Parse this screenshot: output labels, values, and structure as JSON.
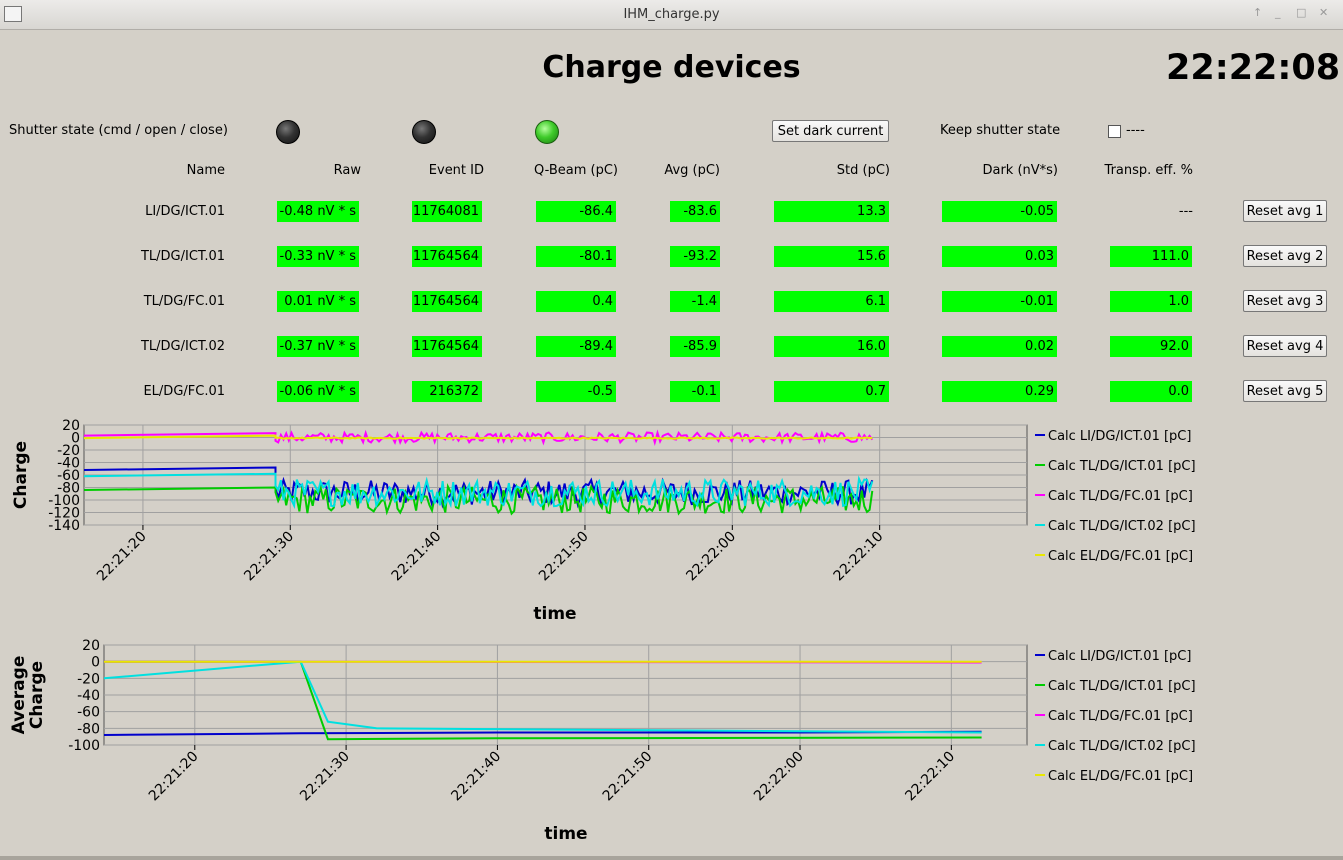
{
  "window": {
    "title": "IHM_charge.py"
  },
  "header": {
    "title": "Charge devices",
    "clock": "22:22:08"
  },
  "shutter": {
    "label": "Shutter state (cmd / open / close)",
    "leds": [
      "off",
      "off",
      "on"
    ]
  },
  "set_dark_label": "Set dark current",
  "keep_shutter": {
    "label": "Keep shutter state",
    "checkbox_text": "----"
  },
  "columns": [
    "Name",
    "Raw",
    "Event ID",
    "Q-Beam (pC)",
    "Avg (pC)",
    "Std (pC)",
    "Dark (nV*s)",
    "Transp. eff. %"
  ],
  "rows": [
    {
      "name": "LI/DG/ICT.01",
      "raw": "-0.48 nV * s",
      "event_id": "11764081",
      "qbeam": "-86.4",
      "avg": "-83.6",
      "std": "13.3",
      "dark": "-0.05",
      "transp": "---",
      "reset": "Reset avg 1"
    },
    {
      "name": "TL/DG/ICT.01",
      "raw": "-0.33 nV * s",
      "event_id": "11764564",
      "qbeam": "-80.1",
      "avg": "-93.2",
      "std": "15.6",
      "dark": "0.03",
      "transp": "111.0",
      "reset": "Reset avg 2"
    },
    {
      "name": "TL/DG/FC.01",
      "raw": "0.01 nV * s",
      "event_id": "11764564",
      "qbeam": "0.4",
      "avg": "-1.4",
      "std": "6.1",
      "dark": "-0.01",
      "transp": "1.0",
      "reset": "Reset avg 3"
    },
    {
      "name": "TL/DG/ICT.02",
      "raw": "-0.37 nV * s",
      "event_id": "11764564",
      "qbeam": "-89.4",
      "avg": "-85.9",
      "std": "16.0",
      "dark": "0.02",
      "transp": "92.0",
      "reset": "Reset avg 4"
    },
    {
      "name": "EL/DG/FC.01",
      "raw": "-0.06 nV * s",
      "event_id": "216372",
      "qbeam": "-0.5",
      "avg": "-0.1",
      "std": "0.7",
      "dark": "0.29",
      "transp": "0.0",
      "reset": "Reset avg 5"
    }
  ],
  "colors": {
    "led_green": "#3fcb2a",
    "value_bg": "#00ff00",
    "window_bg": "#d4d0c8"
  },
  "chart_data": [
    {
      "type": "line",
      "ylabel": "Charge",
      "xlabel": "time",
      "ylim": [
        -140,
        20
      ],
      "yticks": [
        20,
        0,
        -20,
        -40,
        -60,
        -80,
        -100,
        -120,
        -140
      ],
      "xticks": [
        "22:21:20",
        "22:21:30",
        "22:21:40",
        "22:21:50",
        "22:22:00",
        "22:22:10"
      ],
      "xlim_seconds": [
        -4,
        60
      ],
      "grid": true,
      "legend_position": "right",
      "series": [
        {
          "name": "Calc LI/DG/ICT.01 [pC]",
          "color": "#0000cc",
          "baseline": -52,
          "noisy_mean": -88,
          "amp": 20
        },
        {
          "name": "Calc TL/DG/ICT.01 [pC]",
          "color": "#00cc00",
          "baseline": -84,
          "noisy_mean": -100,
          "amp": 22
        },
        {
          "name": "Calc TL/DG/FC.01 [pC]",
          "color": "#ff00ff",
          "baseline": 3,
          "noisy_mean": 0,
          "amp": 8
        },
        {
          "name": "Calc TL/DG/ICT.02 [pC]",
          "color": "#00e0e0",
          "baseline": -62,
          "noisy_mean": -88,
          "amp": 22
        },
        {
          "name": "Calc EL/DG/FC.01 [pC]",
          "color": "#e8e800",
          "baseline": -1,
          "noisy_mean": -1,
          "amp": 1
        }
      ]
    },
    {
      "type": "line",
      "ylabel": "Average Charge",
      "xlabel": "time",
      "ylim": [
        -100,
        20
      ],
      "yticks": [
        20,
        0,
        -20,
        -40,
        -60,
        -80,
        -100
      ],
      "xticks": [
        "22:21:20",
        "22:21:30",
        "22:21:40",
        "22:21:50",
        "22:22:00",
        "22:22:10"
      ],
      "xlim_seconds": [
        -6,
        55
      ],
      "grid": true,
      "legend_position": "right",
      "series": [
        {
          "name": "Calc LI/DG/ICT.01 [pC]",
          "color": "#0000cc",
          "points": [
            [
              -6,
              -88
            ],
            [
              7,
              -86
            ],
            [
              20,
              -85
            ],
            [
              40,
              -85
            ],
            [
              52,
              -84
            ]
          ]
        },
        {
          "name": "Calc TL/DG/ICT.01 [pC]",
          "color": "#00cc00",
          "points": [
            [
              -6,
              0
            ],
            [
              7,
              0
            ],
            [
              8.8,
              -93
            ],
            [
              20,
              -92
            ],
            [
              52,
              -91
            ]
          ]
        },
        {
          "name": "Calc TL/DG/FC.01 [pC]",
          "color": "#ff00ff",
          "points": [
            [
              -6,
              0
            ],
            [
              7,
              0
            ],
            [
              52,
              -1
            ]
          ]
        },
        {
          "name": "Calc TL/DG/ICT.02 [pC]",
          "color": "#00e0e0",
          "points": [
            [
              -6,
              -20
            ],
            [
              7,
              0
            ],
            [
              8.8,
              -72
            ],
            [
              12,
              -80
            ],
            [
              52,
              -85
            ]
          ]
        },
        {
          "name": "Calc EL/DG/FC.01 [pC]",
          "color": "#e8e800",
          "points": [
            [
              -6,
              0
            ],
            [
              52,
              0
            ]
          ]
        }
      ]
    }
  ]
}
